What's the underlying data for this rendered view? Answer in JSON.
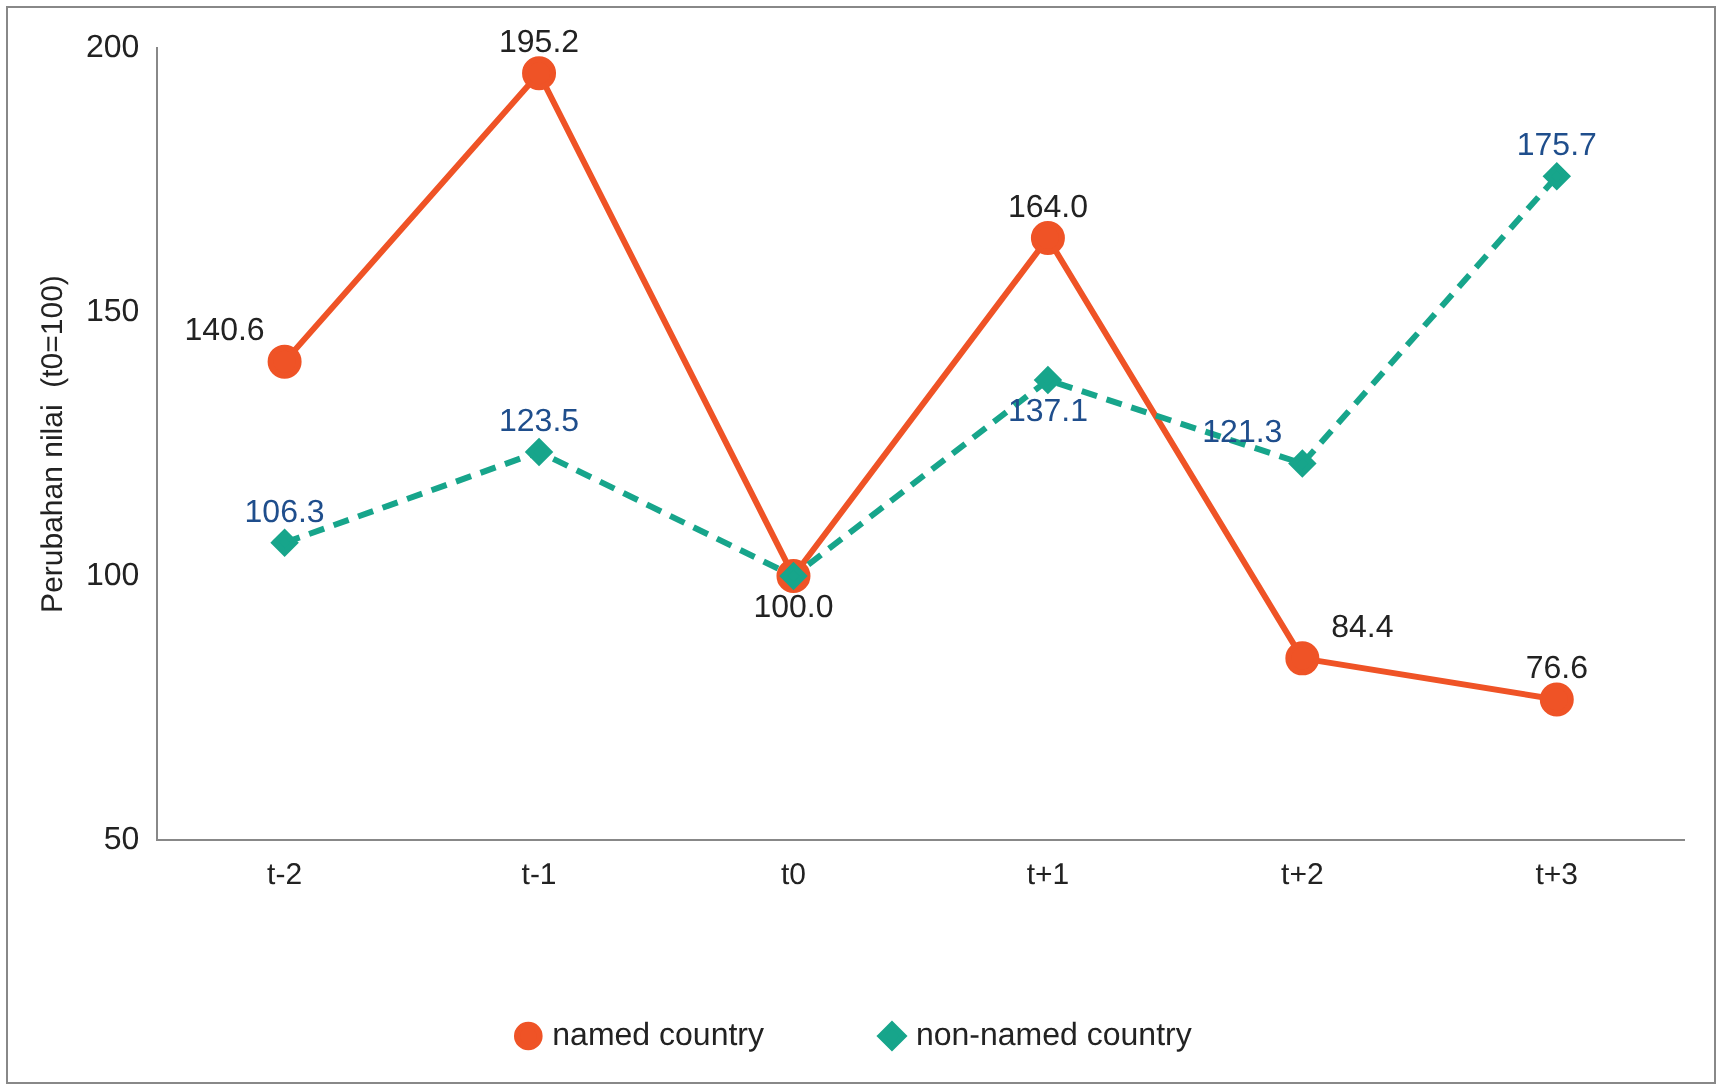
{
  "chart_data": {
    "type": "line",
    "ylabel": "Perubahan nilai  (t0=100)",
    "categories": [
      "t-2",
      "t-1",
      "t0",
      "t+1",
      "t+2",
      "t+3"
    ],
    "ylim": [
      50,
      200
    ],
    "yticks": [
      50,
      100,
      150,
      200
    ],
    "grid": false,
    "legend": "bottom",
    "series": [
      {
        "name": "named country",
        "color": "#ef5326",
        "marker": "circle",
        "line_style": "solid",
        "values": [
          140.6,
          195.2,
          100.0,
          164.0,
          84.4,
          76.6
        ],
        "value_labels": [
          "140.6",
          "195.2",
          "100.0",
          "164.0",
          "84.4",
          "76.6"
        ]
      },
      {
        "name": "non-named country",
        "color": "#17a58b",
        "marker": "diamond",
        "line_style": "dashed",
        "values": [
          106.3,
          123.5,
          100.0,
          137.1,
          121.3,
          175.7
        ],
        "value_labels": [
          "106.3",
          "123.5",
          null,
          "137.1",
          "121.3",
          "175.7"
        ]
      }
    ]
  }
}
